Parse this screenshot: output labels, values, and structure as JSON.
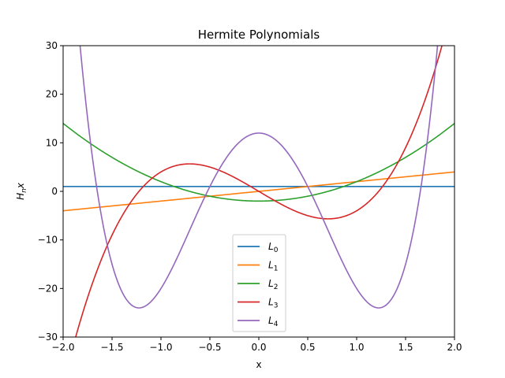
{
  "chart_data": {
    "type": "line",
    "title": "Hermite Polynomials",
    "xlabel": "x",
    "ylabel_main": "H",
    "ylabel_sub": "n",
    "ylabel_tail": "x",
    "xlim": [
      -2.0,
      2.0
    ],
    "ylim": [
      -30,
      30
    ],
    "x_ticks": [
      -2.0,
      -1.5,
      -1.0,
      -0.5,
      0.0,
      0.5,
      1.0,
      1.5,
      2.0
    ],
    "x_tick_labels": [
      "−2.0",
      "−1.5",
      "−1.0",
      "−0.5",
      "0.0",
      "0.5",
      "1.0",
      "1.5",
      "2.0"
    ],
    "y_ticks": [
      -30,
      -20,
      -10,
      0,
      10,
      20,
      30
    ],
    "y_tick_labels": [
      "−30",
      "−20",
      "−10",
      "0",
      "10",
      "20",
      "30"
    ],
    "grid": false,
    "legend_placement": "lower-center",
    "series": [
      {
        "name_main": "L",
        "name_sub": "0",
        "color": "#1f77b4",
        "coefficients": [
          1
        ]
      },
      {
        "name_main": "L",
        "name_sub": "1",
        "color": "#ff7f0e",
        "coefficients": [
          0,
          2
        ]
      },
      {
        "name_main": "L",
        "name_sub": "2",
        "color": "#2ca02c",
        "coefficients": [
          -2,
          0,
          4
        ]
      },
      {
        "name_main": "L",
        "name_sub": "3",
        "color": "#d62728",
        "coefficients": [
          0,
          -12,
          0,
          8
        ]
      },
      {
        "name_main": "L",
        "name_sub": "4",
        "color": "#9467bd",
        "coefficients": [
          12,
          0,
          -48,
          0,
          16
        ]
      }
    ]
  }
}
